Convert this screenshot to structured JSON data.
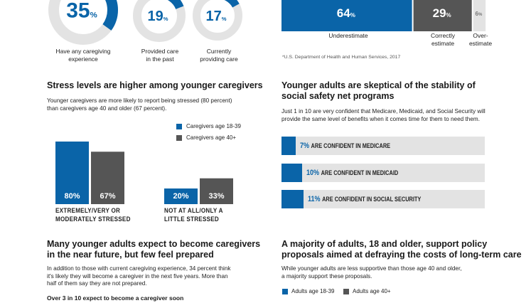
{
  "donuts": [
    {
      "value": "35",
      "pct": 35,
      "label_lines": [
        "Have any caregiving",
        "experience"
      ]
    },
    {
      "value": "19",
      "pct": 19,
      "label_lines": [
        "Provided care",
        "in the past"
      ]
    },
    {
      "value": "17",
      "pct": 17,
      "label_lines": [
        "Currently",
        "providing care"
      ]
    }
  ],
  "estimate": {
    "bars": [
      {
        "value": "64",
        "label_lines": [
          "Underestimate"
        ]
      },
      {
        "value": "29",
        "label_lines": [
          "Correctly",
          "estimate"
        ]
      },
      {
        "value": "6",
        "label_lines": [
          "Over-",
          "estimate"
        ]
      }
    ],
    "source": "*U.S. Department of Health and Human Services, 2017"
  },
  "stress": {
    "title": "Stress levels are higher among younger caregivers",
    "body_lines": [
      "Younger caregivers are more likely to report being stressed (80 percent)",
      "than caregivers age 40 and older (67 percent)."
    ],
    "legend": [
      "Caregivers age 18-39",
      "Caregivers age 40+"
    ],
    "group_labels": [
      [
        "EXTREMELY/VERY OR",
        "MODERATELY STRESSED"
      ],
      [
        "NOT AT ALL/ONLY A",
        "LITTLE STRESSED"
      ]
    ]
  },
  "safety_net": {
    "title_lines": [
      "Younger adults are skeptical of the stability of",
      "social safety net programs"
    ],
    "body_lines": [
      "Just 1 in 10 are very confident that Medicare, Medicaid, and Social Security will",
      "provide the same level of benefits when it comes time for them to need them."
    ],
    "rows": [
      {
        "pct_text": "7%",
        "text": "ARE CONFIDENT IN MEDICARE"
      },
      {
        "pct_text": "10%",
        "text": "ARE CONFIDENT IN MEDICAID"
      },
      {
        "pct_text": "11%",
        "text": "ARE CONFIDENT IN SOCIAL SECURITY"
      }
    ]
  },
  "future": {
    "title_lines": [
      "Many younger adults expect to become caregivers",
      "in the near future, but few feel prepared"
    ],
    "body_lines": [
      "In addition to those with current caregiving experience, 34 percent think",
      "it's likely they will become a caregiver in the next five years. More than",
      "half of them say they are not prepared."
    ],
    "subhead": "Over 3 in 10 expect to become a caregiver soon"
  },
  "policy": {
    "title_lines": [
      "A majority of adults, 18 and older, support policy",
      "proposals aimed at defraying the costs of long-term care"
    ],
    "body_lines": [
      "While younger adults are less supportive than those age 40 and older,",
      "a majority support these proposals."
    ],
    "legend": [
      "Adults age 18-39",
      "Adults age 40+"
    ]
  },
  "colors": {
    "blue": "#0a64a8",
    "gray": "#555555",
    "light": "#e3e3e3"
  },
  "chart_data": [
    {
      "type": "pie",
      "subtype": "donut",
      "categories": [
        "Have any caregiving experience",
        "Provided care in the past",
        "Currently providing care"
      ],
      "values": [
        35,
        19,
        17
      ],
      "unit": "%"
    },
    {
      "type": "bar",
      "orientation": "horizontal-stacked",
      "categories": [
        "Underestimate",
        "Correctly estimate",
        "Over-estimate"
      ],
      "values": [
        64,
        29,
        6
      ],
      "unit": "%"
    },
    {
      "type": "bar",
      "title": "Stress levels are higher among younger caregivers",
      "categories": [
        "EXTREMELY/VERY OR MODERATELY STRESSED",
        "NOT AT ALL/ONLY A LITTLE STRESSED"
      ],
      "series": [
        {
          "name": "Caregivers age 18-39",
          "values": [
            80,
            20
          ]
        },
        {
          "name": "Caregivers age 40+",
          "values": [
            67,
            33
          ]
        }
      ],
      "ylim": [
        0,
        100
      ],
      "unit": "%"
    },
    {
      "type": "bar",
      "orientation": "horizontal",
      "title": "Younger adults are skeptical of the stability of social safety net programs",
      "categories": [
        "ARE CONFIDENT IN MEDICARE",
        "ARE CONFIDENT IN MEDICAID",
        "ARE CONFIDENT IN SOCIAL SECURITY"
      ],
      "values": [
        7,
        10,
        11
      ],
      "xlim": [
        0,
        100
      ],
      "unit": "%"
    }
  ]
}
